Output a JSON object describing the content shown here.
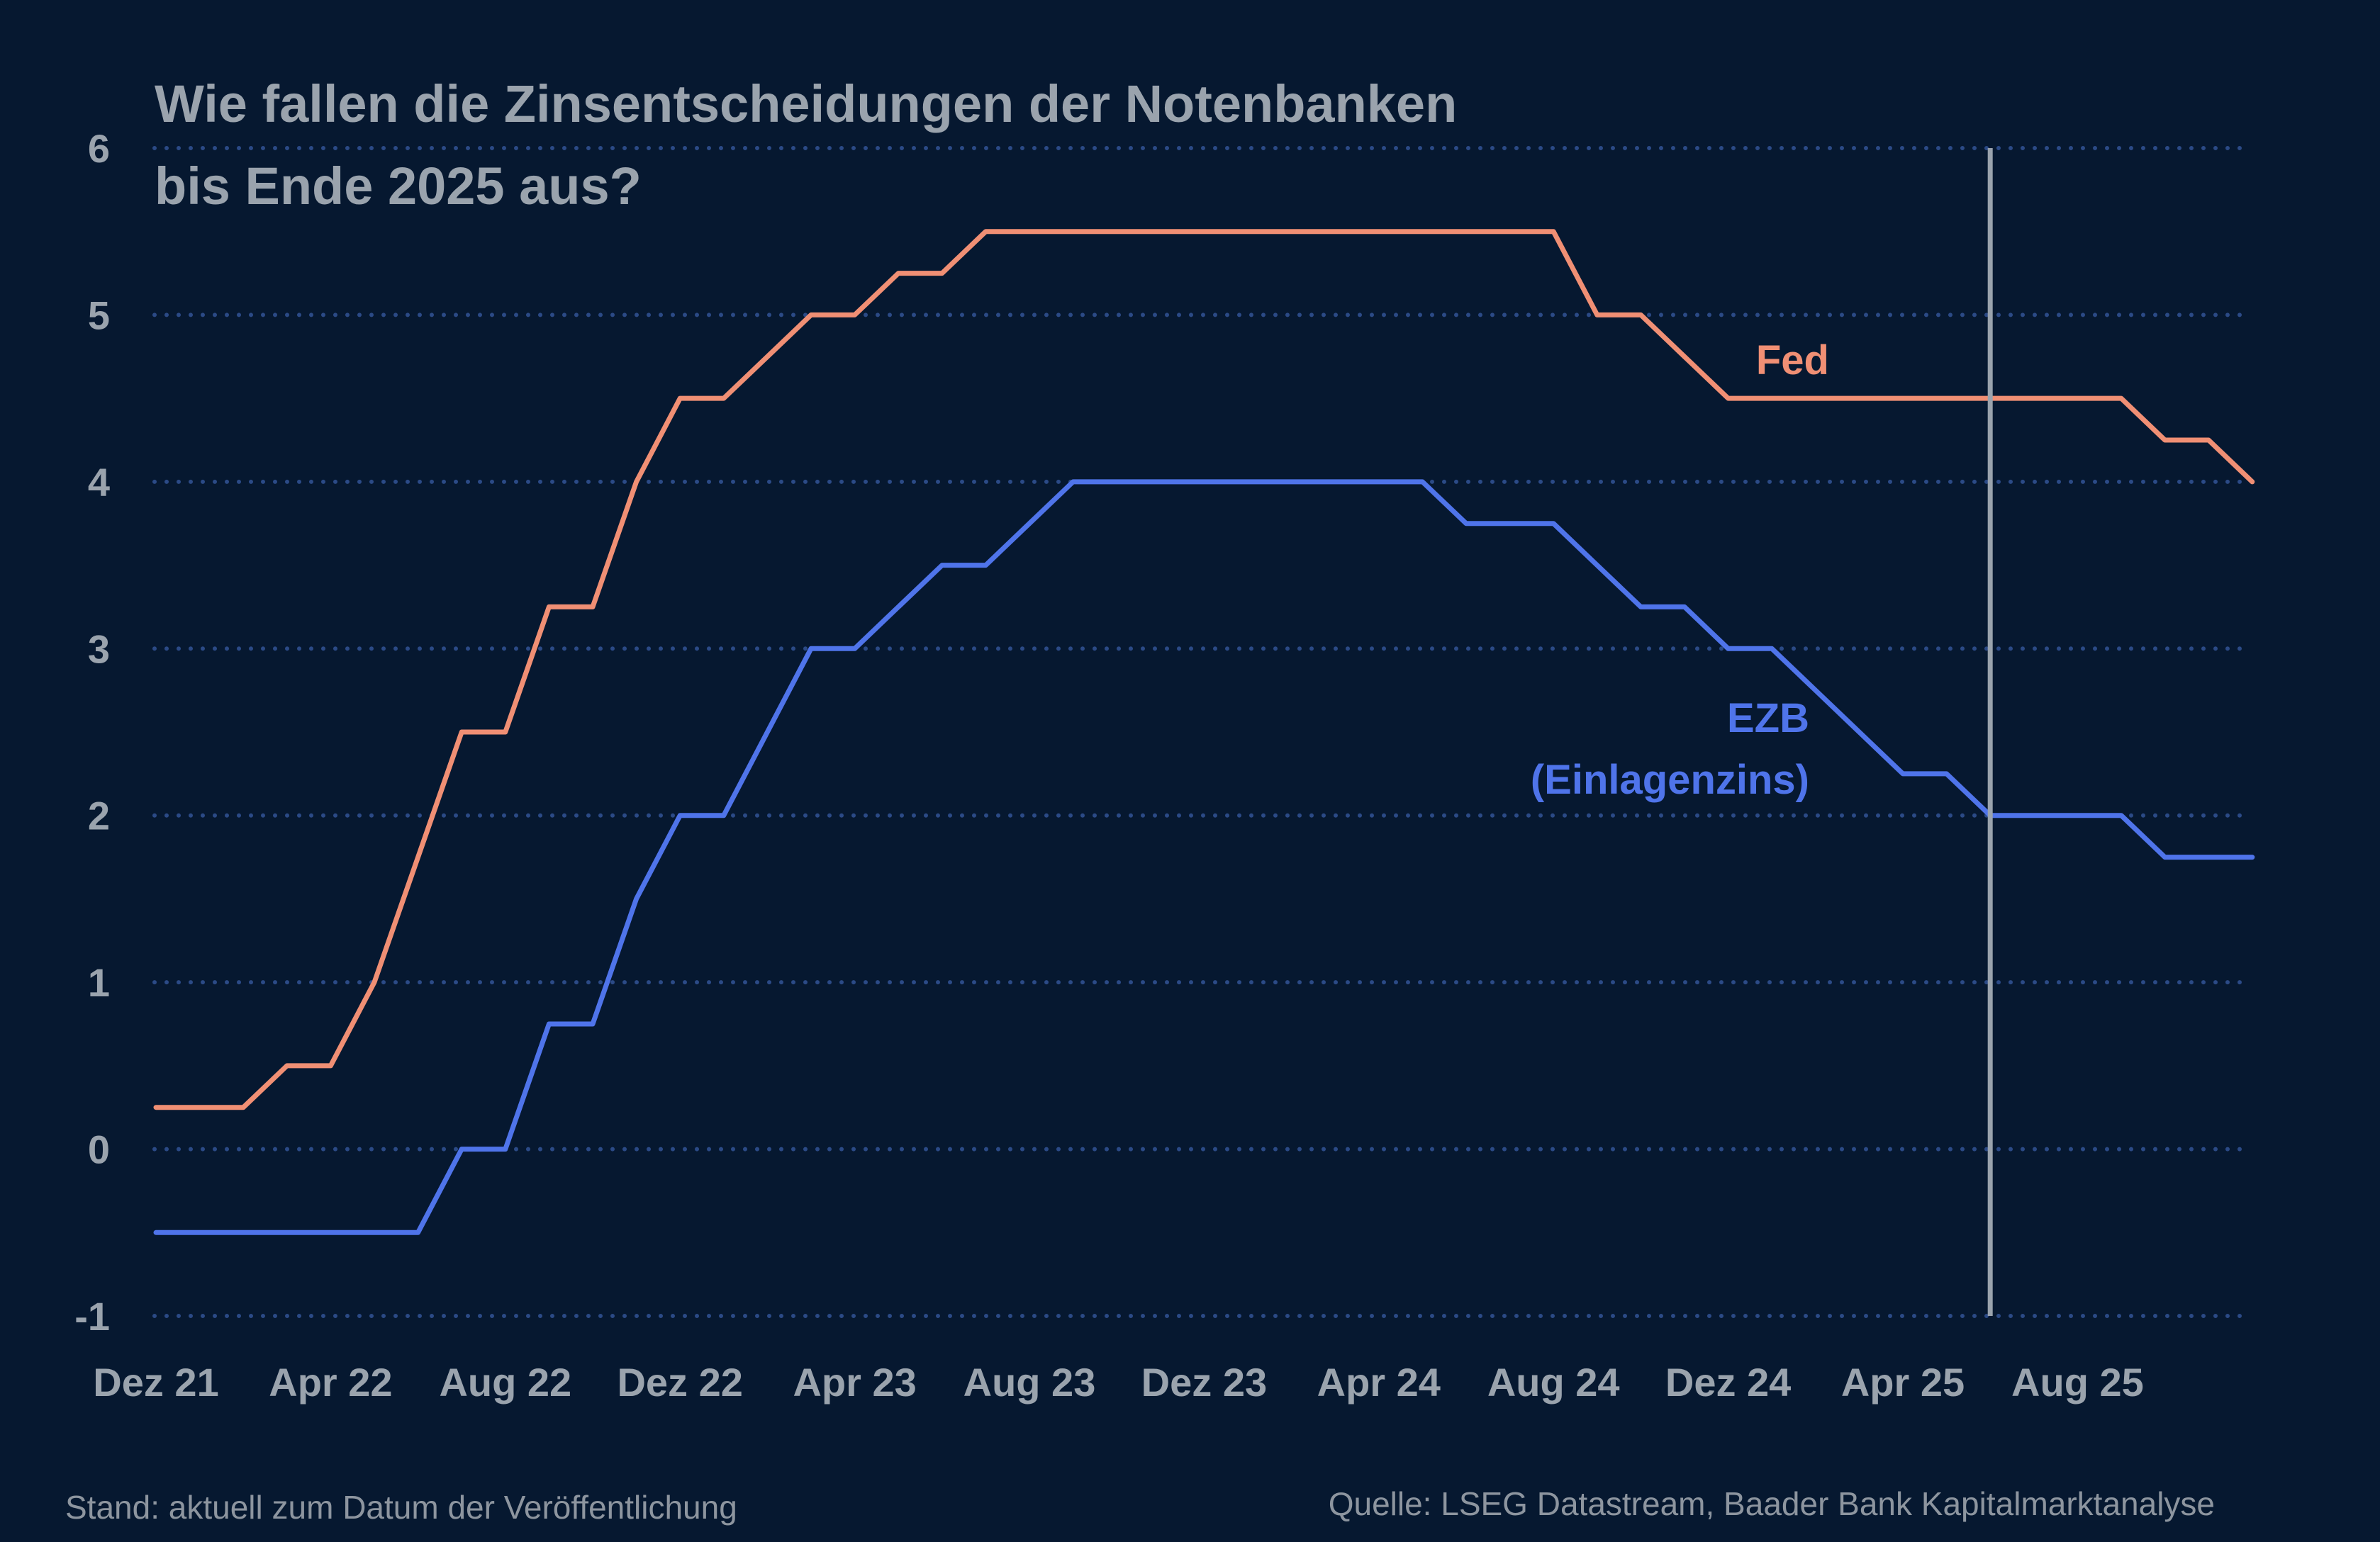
{
  "title_lines": [
    "Wie fallen die Zinsentscheidungen der Notenbanken",
    "bis Ende 2025 aus?"
  ],
  "footer": {
    "left": "Stand: aktuell zum Datum der Veröffentlichung",
    "right": "Quelle: LSEG Datastream, Baader Bank Kapitalmarktanalyse"
  },
  "colors": {
    "background": "#061830",
    "grid": "#2b4a86",
    "text": "#9aa3ad",
    "marker": "#9aa3ad",
    "fed": "#f08f74",
    "ezb": "#4f74ea"
  },
  "chart_data": {
    "type": "line",
    "title": "Wie fallen die Zinsentscheidungen der Notenbanken bis Ende 2025 aus?",
    "xlabel": "",
    "ylabel": "",
    "x_unit": "month",
    "x_range": [
      "2021-12",
      "2025-12"
    ],
    "ylim": [
      -1,
      6
    ],
    "yticks": [
      -1,
      0,
      1,
      2,
      3,
      4,
      5,
      6
    ],
    "xticks": [
      {
        "label": "Dez 21",
        "month": "2021-12"
      },
      {
        "label": "Apr 22",
        "month": "2022-04"
      },
      {
        "label": "Aug 22",
        "month": "2022-08"
      },
      {
        "label": "Dez 22",
        "month": "2022-12"
      },
      {
        "label": "Apr 23",
        "month": "2023-04"
      },
      {
        "label": "Aug 23",
        "month": "2023-08"
      },
      {
        "label": "Dez 23",
        "month": "2023-12"
      },
      {
        "label": "Apr 24",
        "month": "2024-04"
      },
      {
        "label": "Aug 24",
        "month": "2024-08"
      },
      {
        "label": "Dez 24",
        "month": "2024-12"
      },
      {
        "label": "Apr 25",
        "month": "2025-04"
      },
      {
        "label": "Aug 25",
        "month": "2025-08"
      }
    ],
    "grid": "horizontal dotted",
    "forecast_marker": {
      "month": "2025-06"
    },
    "series": [
      {
        "name": "Fed",
        "label": "Fed",
        "color_key": "fed",
        "points": [
          [
            "2021-12",
            0.25
          ],
          [
            "2022-02",
            0.25
          ],
          [
            "2022-03",
            0.5
          ],
          [
            "2022-04",
            0.5
          ],
          [
            "2022-05",
            1.0
          ],
          [
            "2022-06",
            1.75
          ],
          [
            "2022-07",
            2.5
          ],
          [
            "2022-08",
            2.5
          ],
          [
            "2022-09",
            3.25
          ],
          [
            "2022-10",
            3.25
          ],
          [
            "2022-11",
            4.0
          ],
          [
            "2022-12",
            4.5
          ],
          [
            "2023-01",
            4.5
          ],
          [
            "2023-02",
            4.75
          ],
          [
            "2023-03",
            5.0
          ],
          [
            "2023-04",
            5.0
          ],
          [
            "2023-05",
            5.25
          ],
          [
            "2023-06",
            5.25
          ],
          [
            "2023-07",
            5.5
          ],
          [
            "2024-08",
            5.5
          ],
          [
            "2024-09",
            5.0
          ],
          [
            "2024-10",
            5.0
          ],
          [
            "2024-11",
            4.75
          ],
          [
            "2024-12",
            4.5
          ],
          [
            "2025-07",
            4.5
          ],
          [
            "2025-09",
            4.5
          ],
          [
            "2025-10",
            4.25
          ],
          [
            "2025-11",
            4.25
          ],
          [
            "2025-12",
            4.0
          ]
        ]
      },
      {
        "name": "EZB (Einlagenzins)",
        "label_lines": [
          "EZB",
          "(Einlagenzins)"
        ],
        "color_key": "ezb",
        "points": [
          [
            "2021-12",
            -0.5
          ],
          [
            "2022-06",
            -0.5
          ],
          [
            "2022-07",
            0.0
          ],
          [
            "2022-08",
            0.0
          ],
          [
            "2022-09",
            0.75
          ],
          [
            "2022-10",
            0.75
          ],
          [
            "2022-11",
            1.5
          ],
          [
            "2022-12",
            2.0
          ],
          [
            "2023-01",
            2.0
          ],
          [
            "2023-02",
            2.5
          ],
          [
            "2023-03",
            3.0
          ],
          [
            "2023-04",
            3.0
          ],
          [
            "2023-05",
            3.25
          ],
          [
            "2023-06",
            3.5
          ],
          [
            "2023-07",
            3.5
          ],
          [
            "2023-08",
            3.75
          ],
          [
            "2023-09",
            4.0
          ],
          [
            "2024-05",
            4.0
          ],
          [
            "2024-06",
            3.75
          ],
          [
            "2024-08",
            3.75
          ],
          [
            "2024-09",
            3.5
          ],
          [
            "2024-10",
            3.25
          ],
          [
            "2024-11",
            3.25
          ],
          [
            "2024-12",
            3.0
          ],
          [
            "2025-01",
            3.0
          ],
          [
            "2025-02",
            2.75
          ],
          [
            "2025-03",
            2.5
          ],
          [
            "2025-04",
            2.25
          ],
          [
            "2025-05",
            2.25
          ],
          [
            "2025-06",
            2.0
          ],
          [
            "2025-09",
            2.0
          ],
          [
            "2025-10",
            1.75
          ],
          [
            "2025-12",
            1.75
          ]
        ]
      }
    ]
  }
}
